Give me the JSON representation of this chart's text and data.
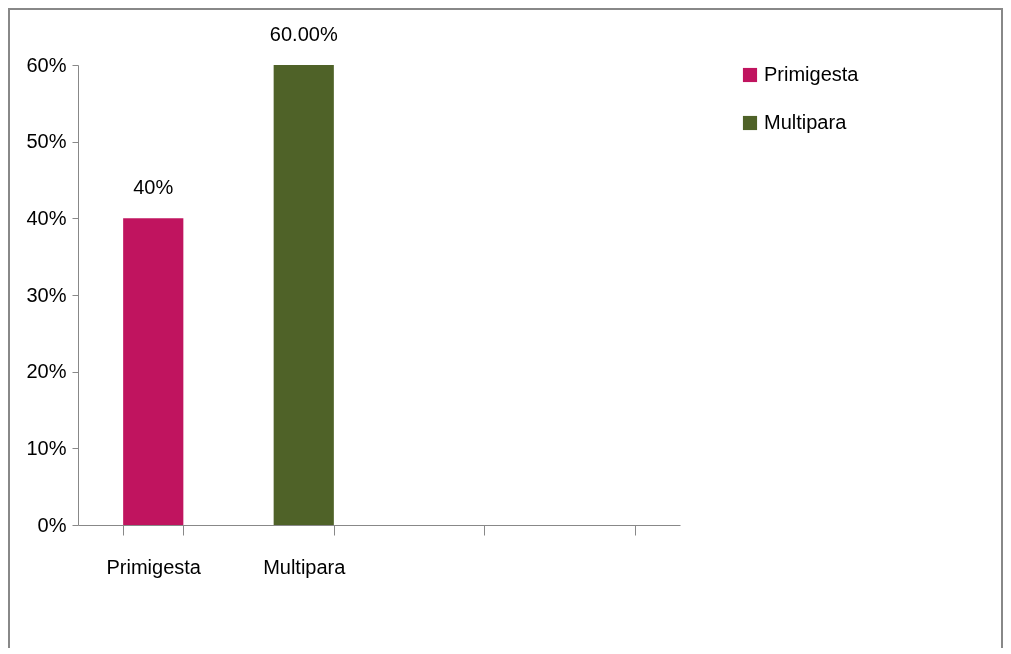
{
  "chart_data": {
    "type": "bar",
    "categories": [
      "Primigesta",
      "Multipara",
      null,
      null
    ],
    "series": [
      {
        "name": "Primigesta",
        "color": "#c0145f",
        "values": [
          40,
          null,
          null,
          null
        ],
        "value_labels": [
          "40%",
          null,
          null,
          null
        ]
      },
      {
        "name": "Multipara",
        "color": "#4f6228",
        "values": [
          null,
          60,
          null,
          null
        ],
        "value_labels": [
          null,
          "60.00%",
          null,
          null
        ]
      }
    ],
    "ylim": [
      0,
      60
    ],
    "yticks": [
      {
        "value": 0,
        "label": "0%"
      },
      {
        "value": 10,
        "label": "10%"
      },
      {
        "value": 20,
        "label": "20%"
      },
      {
        "value": 30,
        "label": "30%"
      },
      {
        "value": 40,
        "label": "40%"
      },
      {
        "value": 50,
        "label": "50%"
      },
      {
        "value": 60,
        "label": "60%"
      }
    ],
    "grid": false,
    "legend": "right"
  }
}
